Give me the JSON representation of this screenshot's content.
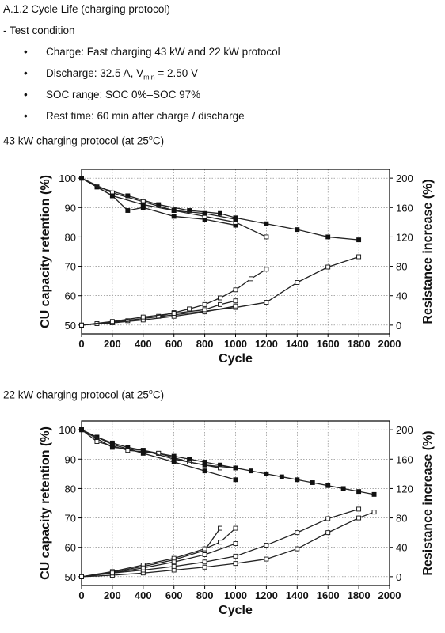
{
  "heading": "A.1.2 Cycle Life (charging protocol)",
  "test_condition": {
    "title": "- Test condition",
    "bullets": [
      {
        "pre": "Charge: Fast charging 43 kW and 22 kW protocol",
        "sub": "",
        "post": ""
      },
      {
        "pre": "Discharge: 32.5 A, V",
        "sub": "min",
        "post": " = 2.50 V"
      },
      {
        "pre": "SOC range: SOC 0%–SOC 97%",
        "sub": "",
        "post": ""
      },
      {
        "pre": "Rest time: 60 min after charge / discharge",
        "sub": "",
        "post": ""
      }
    ]
  },
  "captions": {
    "chart1": {
      "pre": "43 kW charging protocol (at 25",
      "sup": "o",
      "post": "C)"
    },
    "chart2": {
      "pre": "22 kW charging protocol (at 25",
      "sup": "o",
      "post": "C)"
    }
  },
  "chart_data": [
    {
      "type": "line",
      "xlabel": "Cycle",
      "ylabel": "CU capacity retention (%)",
      "y2label": "Resistance increase (%)",
      "xlim": [
        0,
        2000
      ],
      "ylim": [
        47,
        103
      ],
      "y2lim": [
        -12,
        212
      ],
      "xticks": [
        0,
        200,
        400,
        600,
        800,
        1000,
        1200,
        1400,
        1600,
        1800,
        2000
      ],
      "yticks": [
        50,
        60,
        70,
        80,
        90,
        100
      ],
      "y2ticks": [
        0,
        40,
        80,
        120,
        160,
        200
      ],
      "grid": true,
      "capacity_series": [
        {
          "marker": "square-filled",
          "x": [
            0,
            100,
            300,
            500,
            700,
            900,
            1000,
            1200,
            1400,
            1600,
            1800
          ],
          "y": [
            100,
            97,
            94,
            91,
            89,
            88,
            86.5,
            84.5,
            82.5,
            80,
            79
          ]
        },
        {
          "marker": "square-filled",
          "x": [
            0,
            100,
            200,
            300,
            400,
            600,
            800,
            1000
          ],
          "y": [
            100,
            97,
            94,
            89,
            90,
            87,
            86,
            84
          ]
        },
        {
          "marker": "square-open",
          "x": [
            0,
            200,
            400,
            600,
            800,
            1000,
            1200
          ],
          "y": [
            100,
            95,
            92,
            89,
            87,
            85,
            80
          ]
        },
        {
          "marker": "square-filled",
          "x": [
            0,
            200,
            400,
            600,
            800,
            1000
          ],
          "y": [
            100,
            94,
            91,
            89,
            88,
            86
          ]
        }
      ],
      "resistance_series": [
        {
          "marker": "square-open",
          "x": [
            0,
            200,
            400,
            600,
            800,
            1000,
            1200,
            1400,
            1600,
            1800
          ],
          "y": [
            0,
            4,
            9,
            14,
            19,
            24,
            31,
            58,
            79,
            93
          ]
        },
        {
          "marker": "square-open",
          "x": [
            0,
            100,
            200,
            300,
            400,
            500,
            600,
            700,
            800,
            900,
            1000,
            1100,
            1200
          ],
          "y": [
            0,
            2,
            4,
            6,
            9,
            12,
            17,
            22,
            28,
            37,
            48,
            63,
            76
          ]
        },
        {
          "marker": "square-open",
          "x": [
            0,
            200,
            400,
            600,
            800,
            1000
          ],
          "y": [
            0,
            3,
            7,
            12,
            18,
            26
          ]
        },
        {
          "marker": "square-open",
          "x": [
            0,
            200,
            400,
            600,
            800,
            900,
            1000
          ],
          "y": [
            0,
            5,
            11,
            16,
            21,
            28,
            33
          ]
        }
      ]
    },
    {
      "type": "line",
      "xlabel": "Cycle",
      "ylabel": "CU capacity retention (%)",
      "y2label": "Resistance increase (%)",
      "xlim": [
        0,
        2000
      ],
      "ylim": [
        47,
        103
      ],
      "y2lim": [
        -12,
        212
      ],
      "xticks": [
        0,
        200,
        400,
        600,
        800,
        1000,
        1200,
        1400,
        1600,
        1800,
        2000
      ],
      "yticks": [
        50,
        60,
        70,
        80,
        90,
        100
      ],
      "y2ticks": [
        0,
        40,
        80,
        120,
        160,
        200
      ],
      "grid": true,
      "capacity_series": [
        {
          "marker": "square-filled",
          "x": [
            0,
            100,
            200,
            300,
            400,
            500,
            600,
            700,
            800,
            900,
            1000,
            1100,
            1200,
            1300,
            1400,
            1500,
            1600,
            1700,
            1800,
            1900
          ],
          "y": [
            100,
            97.5,
            95.5,
            94,
            93,
            92,
            91,
            90,
            89,
            88,
            87,
            86,
            85,
            84,
            83,
            82,
            81,
            80,
            79,
            78
          ]
        },
        {
          "marker": "square-filled",
          "x": [
            0,
            200,
            400,
            600,
            800,
            1000
          ],
          "y": [
            100,
            95,
            92,
            89,
            86,
            83
          ]
        },
        {
          "marker": "square-open",
          "x": [
            0,
            100,
            300,
            500,
            700,
            900
          ],
          "y": [
            100,
            96,
            93,
            92,
            89,
            87
          ]
        },
        {
          "marker": "square-filled",
          "x": [
            0,
            200,
            400,
            600,
            800,
            1000
          ],
          "y": [
            100,
            94,
            93,
            90,
            88,
            87
          ]
        }
      ],
      "resistance_series": [
        {
          "marker": "square-open",
          "x": [
            0,
            200,
            400,
            600,
            800,
            1000,
            1200,
            1400,
            1600,
            1800,
            1900
          ],
          "y": [
            0,
            2,
            5,
            9,
            13,
            18,
            24,
            38,
            60,
            80,
            88
          ]
        },
        {
          "marker": "square-open",
          "x": [
            0,
            200,
            400,
            600,
            800,
            1000,
            1200,
            1400,
            1600,
            1800
          ],
          "y": [
            0,
            5,
            9,
            14,
            20,
            28,
            43,
            60,
            79,
            92
          ]
        },
        {
          "marker": "square-open",
          "x": [
            0,
            200,
            400,
            600,
            800,
            900
          ],
          "y": [
            0,
            6,
            14,
            23,
            36,
            66
          ]
        },
        {
          "marker": "square-open",
          "x": [
            0,
            200,
            400,
            600,
            800,
            900,
            1000
          ],
          "y": [
            0,
            7,
            16,
            25,
            38,
            47,
            66
          ]
        },
        {
          "marker": "square-open",
          "x": [
            0,
            200,
            400,
            600,
            800,
            1000
          ],
          "y": [
            0,
            5,
            12,
            20,
            30,
            45
          ]
        }
      ]
    }
  ]
}
